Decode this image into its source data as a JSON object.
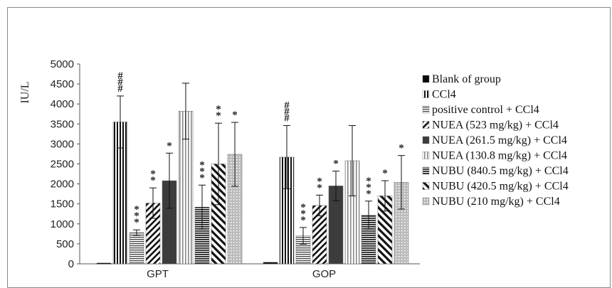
{
  "chart_data": {
    "type": "bar",
    "ylabel": "IU/L",
    "ylim": [
      0,
      5000
    ],
    "yticks": [
      0,
      500,
      1000,
      1500,
      2000,
      2500,
      3000,
      3500,
      4000,
      4500,
      5000
    ],
    "categories": [
      "GPT",
      "GOP"
    ],
    "grid": false,
    "legend_position": "right",
    "series": [
      {
        "name": "Blank of group",
        "pattern": "solid-black",
        "values": [
          20,
          40
        ],
        "errors": [
          0,
          0
        ],
        "sig": [
          "",
          ""
        ]
      },
      {
        "name": "CCl4",
        "pattern": "vertical",
        "values": [
          3550,
          2670
        ],
        "errors": [
          650,
          790
        ],
        "sig": [
          "###",
          "###"
        ]
      },
      {
        "name": "positive control + CCl4",
        "pattern": "horizontal",
        "values": [
          780,
          700
        ],
        "errors": [
          70,
          210
        ],
        "sig": [
          "***",
          "***"
        ]
      },
      {
        "name": "NUEA (523 mg/kg) + CCl4",
        "pattern": "diagonal-down",
        "values": [
          1520,
          1460
        ],
        "errors": [
          380,
          260
        ],
        "sig": [
          "**",
          "**"
        ]
      },
      {
        "name": "NUEA (261.5 mg/kg) + CCl4",
        "pattern": "solid-dark",
        "values": [
          2080,
          1950
        ],
        "errors": [
          690,
          370
        ],
        "sig": [
          "*",
          "*"
        ]
      },
      {
        "name": "NUEA (130.8 mg/kg) + CCl4",
        "pattern": "vertical-light",
        "values": [
          3820,
          2580
        ],
        "errors": [
          700,
          880
        ],
        "sig": [
          "",
          ""
        ]
      },
      {
        "name": "NUBU (840.5 mg/kg) + CCl4",
        "pattern": "horizontal-dense",
        "values": [
          1420,
          1220
        ],
        "errors": [
          550,
          350
        ],
        "sig": [
          "***",
          "***"
        ]
      },
      {
        "name": "NUBU (420.5 mg/kg) + CCl4",
        "pattern": "diagonal-up",
        "values": [
          2500,
          1700
        ],
        "errors": [
          1020,
          380
        ],
        "sig": [
          "**",
          "*"
        ]
      },
      {
        "name": "NUBU (210 mg/kg) + CCl4",
        "pattern": "dotted",
        "values": [
          2740,
          2040
        ],
        "errors": [
          800,
          670
        ],
        "sig": [
          "*",
          "*"
        ]
      }
    ]
  }
}
